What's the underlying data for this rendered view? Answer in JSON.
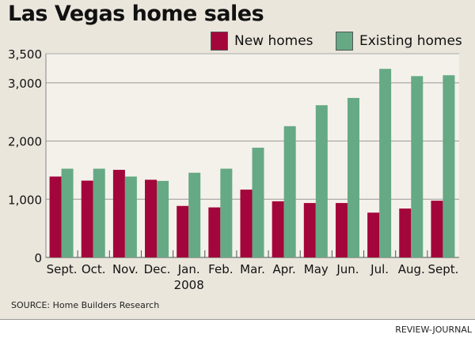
{
  "chart_data": {
    "type": "bar",
    "title": "Las Vegas home sales",
    "categories": [
      "Sept.",
      "Oct.",
      "Nov.",
      "Dec.",
      "Jan.",
      "Feb.",
      "Mar.",
      "Apr.",
      "May",
      "Jun.",
      "Jul.",
      "Aug.",
      "Sept."
    ],
    "year_label": "2008",
    "series": [
      {
        "name": "New homes",
        "color": "#a3063a",
        "values": [
          1390,
          1320,
          1505,
          1335,
          885,
          860,
          1165,
          965,
          935,
          935,
          770,
          840,
          975
        ]
      },
      {
        "name": "Existing homes",
        "color": "#66a985",
        "values": [
          1525,
          1525,
          1390,
          1315,
          1455,
          1525,
          1885,
          2255,
          2615,
          2740,
          3240,
          3115,
          3130
        ]
      }
    ],
    "yticks": [
      0,
      1000,
      2000,
      3000,
      3500
    ],
    "ytick_labels": [
      "0",
      "1,000",
      "2,000",
      "3,000",
      "3,500"
    ],
    "ylim": [
      0,
      3500
    ],
    "grid": true,
    "legend": "top-right",
    "xlabel": "",
    "ylabel": ""
  },
  "source": "SOURCE: Home Builders Research",
  "credit": "REVIEW-JOURNAL"
}
